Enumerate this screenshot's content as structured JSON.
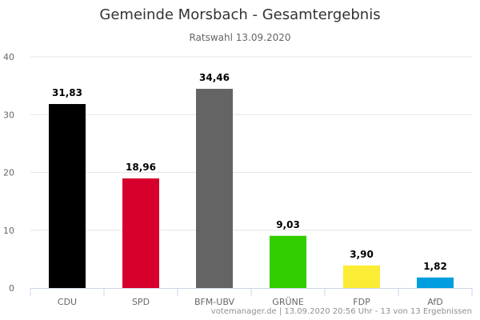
{
  "chart_data": {
    "type": "bar",
    "title": "Gemeinde Morsbach - Gesamtergebnis",
    "subtitle": "Ratswahl 13.09.2020",
    "categories": [
      "CDU",
      "SPD",
      "BFM-UBV",
      "GRÜNE",
      "FDP",
      "AfD"
    ],
    "values": [
      31.83,
      18.96,
      34.46,
      9.03,
      3.9,
      1.82
    ],
    "value_labels": [
      "31,83",
      "18,96",
      "34,46",
      "9,03",
      "3,90",
      "1,82"
    ],
    "colors": [
      "#000000",
      "#d7002c",
      "#646464",
      "#32cd00",
      "#fbec35",
      "#009ee0"
    ],
    "ylim": [
      0,
      40
    ],
    "yticks": [
      "0",
      "10",
      "20",
      "30",
      "40"
    ],
    "xlabel": "",
    "ylabel": "",
    "grid": true
  },
  "credits": "votemanager.de | 13.09.2020 20:56 Uhr - 13 von 13 Ergebnissen"
}
